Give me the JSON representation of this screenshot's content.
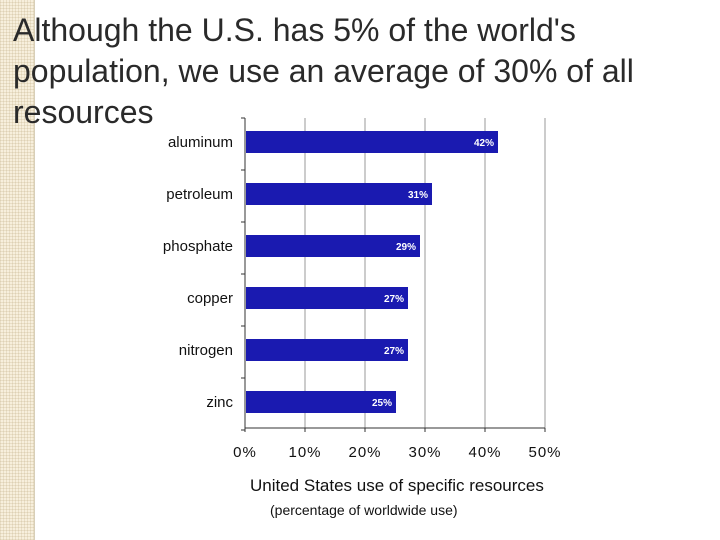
{
  "slide": {
    "title": "Although the U.S. has 5% of the world's population, we use an average of 30% of all resources"
  },
  "chart_data": {
    "type": "bar",
    "orientation": "horizontal",
    "categories": [
      "aluminum",
      "petroleum",
      "phosphate",
      "copper",
      "nitrogen",
      "zinc"
    ],
    "values": [
      42,
      31,
      29,
      27,
      27,
      25
    ],
    "data_labels": [
      "42%",
      "31%",
      "29%",
      "27%",
      "27%",
      "25%"
    ],
    "xlim": [
      0,
      50
    ],
    "xticks": [
      0,
      10,
      20,
      30,
      40,
      50
    ],
    "xtick_labels": [
      "0%",
      "10%",
      "20%",
      "30%",
      "40%",
      "50%"
    ],
    "grid": "vertical gridlines",
    "bar_color": "#1a1ab0",
    "label_color": "#ffffff",
    "title": "United States use of specific resources",
    "subtitle": "(percentage of worldwide use)"
  }
}
